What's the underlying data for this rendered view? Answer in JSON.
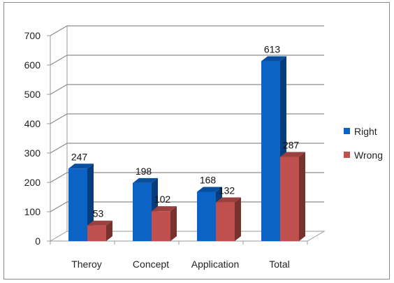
{
  "chart_data": {
    "type": "bar",
    "style": "3d-clustered-column",
    "categories": [
      "Theroy",
      "Concept",
      "Application",
      "Total"
    ],
    "series": [
      {
        "name": "Right",
        "values": [
          247,
          198,
          168,
          613
        ],
        "color": "#0b63c6"
      },
      {
        "name": "Wrong",
        "values": [
          53,
          102,
          132,
          287
        ],
        "color": "#c0504d"
      }
    ],
    "ylim": [
      0,
      700
    ],
    "yticks": [
      "0",
      "100",
      "200",
      "300",
      "400",
      "500",
      "600",
      "700"
    ],
    "grid": true,
    "legend": "right",
    "data_labels": true
  }
}
